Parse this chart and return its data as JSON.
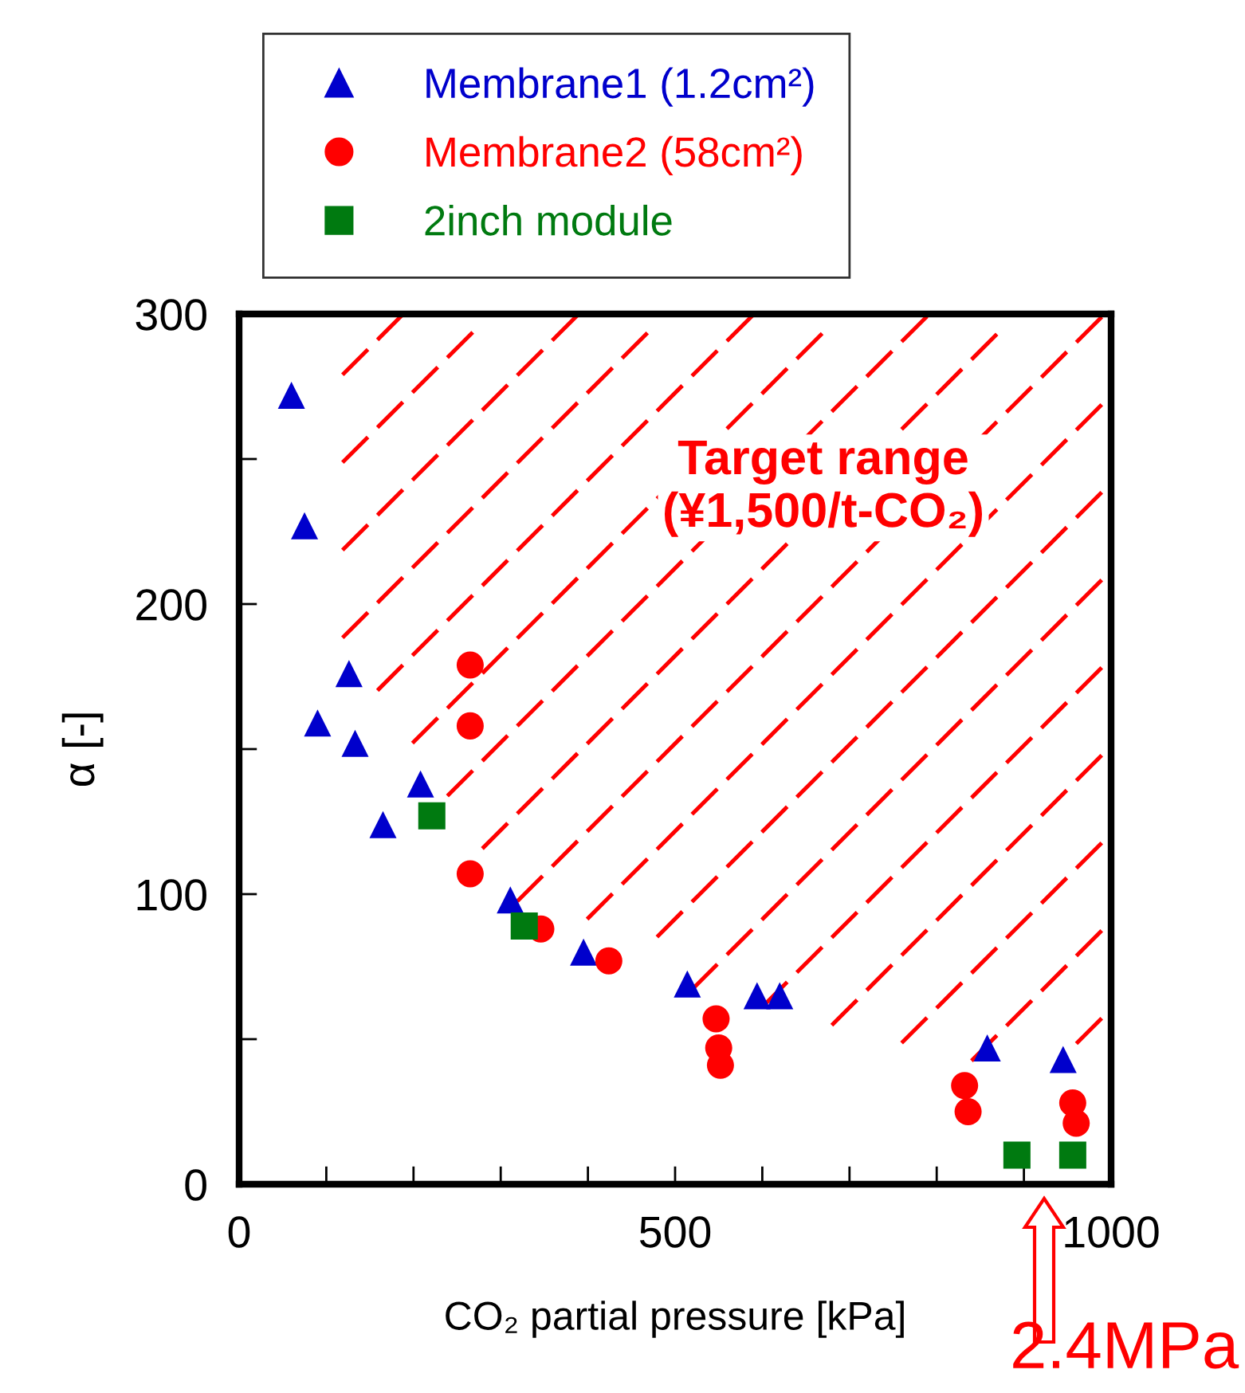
{
  "chart_data": {
    "type": "scatter",
    "xlabel": "CO₂ partial pressure [kPa]",
    "ylabel": "α [-]",
    "xlim": [
      0,
      1000
    ],
    "ylim": [
      0,
      300
    ],
    "xticks": [
      0,
      {
        "value": 100,
        "label": null
      },
      {
        "value": 200,
        "label": null
      },
      {
        "value": 300,
        "label": null
      },
      {
        "value": 400,
        "label": null
      },
      500,
      {
        "value": 600,
        "label": null
      },
      {
        "value": 700,
        "label": null
      },
      {
        "value": 800,
        "label": null
      },
      {
        "value": 900,
        "label": null
      },
      1000
    ],
    "yticks": [
      0,
      {
        "value": 50,
        "label": null
      },
      100,
      {
        "value": 150,
        "label": null
      },
      200,
      {
        "value": 250,
        "label": null
      },
      300
    ],
    "grid": false,
    "legend": "top left",
    "series": [
      {
        "name": "Membrane1 (1.2cm²)",
        "color": "#0000cc",
        "marker": "triangle",
        "x": [
          60,
          75,
          126,
          90,
          133,
          165,
          208,
          311,
          395,
          514,
          594,
          620,
          858,
          945
        ],
        "values": [
          272,
          227,
          176,
          159,
          152,
          124,
          138,
          98,
          80,
          69,
          65,
          65,
          47,
          43
        ]
      },
      {
        "name": "Membrane2 (58cm²)",
        "color": "#ff0000",
        "marker": "circle",
        "x": [
          265,
          265,
          265,
          346,
          424,
          547,
          550,
          552,
          832,
          836,
          956,
          960
        ],
        "values": [
          179,
          158,
          107,
          88,
          77,
          57,
          47,
          41,
          34,
          25,
          28,
          21
        ]
      },
      {
        "name": "2inch module",
        "color": "#007a10",
        "marker": "square",
        "x": [
          221,
          327,
          892,
          956
        ],
        "values": [
          127,
          89,
          10,
          10
        ]
      }
    ],
    "annotations": [
      "Target range\n(¥1,500/t-CO₂)",
      "2.4MPa"
    ]
  }
}
